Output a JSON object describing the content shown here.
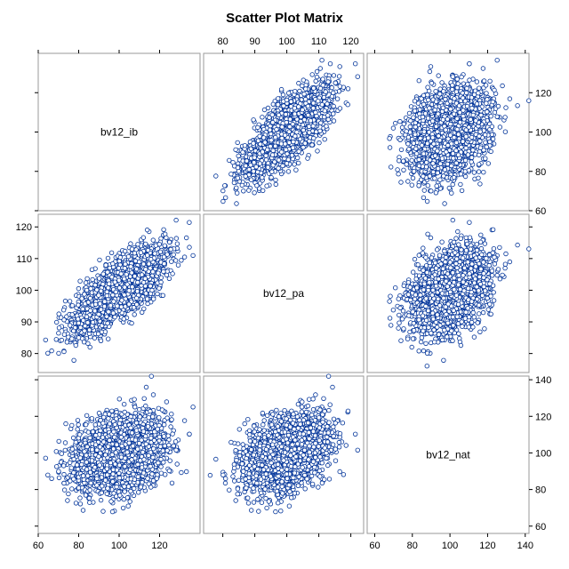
{
  "title": "Scatter Plot Matrix",
  "chart_data": {
    "type": "scatter",
    "title": "Scatter Plot Matrix",
    "variables": [
      "bv12_ib",
      "bv12_pa",
      "bv12_nat"
    ],
    "axes": {
      "bv12_ib": {
        "range": [
          60,
          140
        ],
        "ticks": [
          60,
          80,
          100,
          120
        ]
      },
      "bv12_pa": {
        "range": [
          74,
          124
        ],
        "ticks": [
          80,
          90,
          100,
          110,
          120
        ]
      },
      "bv12_nat": {
        "range": [
          56,
          142
        ],
        "ticks": [
          60,
          80,
          100,
          120,
          140
        ]
      }
    },
    "distribution": {
      "bv12_ib": {
        "mean": 100,
        "sd": 11
      },
      "bv12_pa": {
        "mean": 100,
        "sd": 6.5
      },
      "bv12_nat": {
        "mean": 100,
        "sd": 10
      },
      "correlations": {
        "bv12_ib|bv12_pa": 0.75,
        "bv12_ib|bv12_nat": 0.3,
        "bv12_pa|bv12_nat": 0.35
      }
    },
    "marker": "open circle",
    "marker_color": "#003399",
    "marker_fill": "#ffffff",
    "grid": false,
    "legend": "none"
  }
}
